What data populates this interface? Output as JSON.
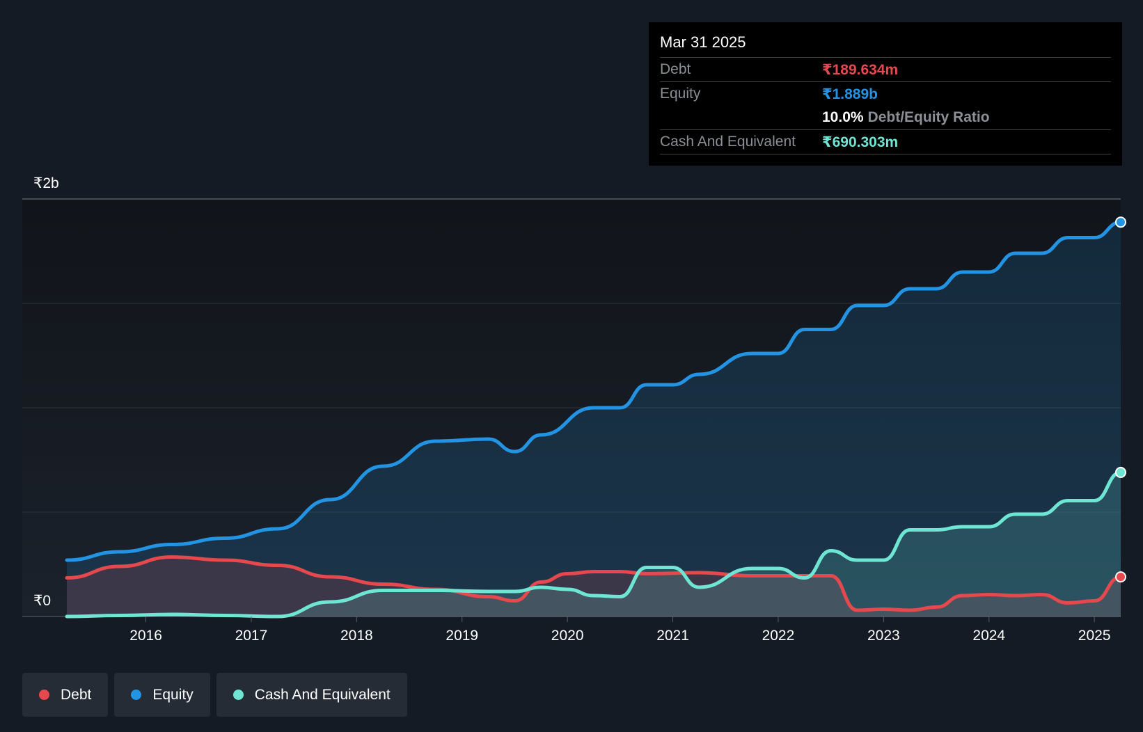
{
  "chart_data": {
    "type": "area",
    "currency": "₹",
    "y_axis": {
      "top_label": "₹2b",
      "bottom_label": "₹0",
      "ylim_millions": [
        0,
        2000
      ]
    },
    "x_axis": {
      "ticks": [
        "2016",
        "2017",
        "2018",
        "2019",
        "2020",
        "2021",
        "2022",
        "2023",
        "2024",
        "2025"
      ],
      "xlim": [
        2015.25,
        2025.25
      ]
    },
    "series": [
      {
        "name": "Debt",
        "color": "#e5484d",
        "unit": "₹m",
        "points": [
          [
            2015.25,
            185
          ],
          [
            2015.75,
            240
          ],
          [
            2016.25,
            285
          ],
          [
            2016.75,
            270
          ],
          [
            2017.25,
            245
          ],
          [
            2017.75,
            190
          ],
          [
            2018.25,
            155
          ],
          [
            2018.75,
            130
          ],
          [
            2019.25,
            95
          ],
          [
            2019.5,
            75
          ],
          [
            2019.75,
            165
          ],
          [
            2020.0,
            205
          ],
          [
            2020.25,
            215
          ],
          [
            2020.5,
            215
          ],
          [
            2020.75,
            205
          ],
          [
            2021.25,
            210
          ],
          [
            2021.75,
            195
          ],
          [
            2022.25,
            195
          ],
          [
            2022.5,
            195
          ],
          [
            2022.75,
            30
          ],
          [
            2023.0,
            35
          ],
          [
            2023.25,
            30
          ],
          [
            2023.5,
            45
          ],
          [
            2023.75,
            100
          ],
          [
            2024.0,
            105
          ],
          [
            2024.25,
            100
          ],
          [
            2024.5,
            105
          ],
          [
            2024.75,
            65
          ],
          [
            2025.0,
            75
          ],
          [
            2025.25,
            189.634
          ]
        ]
      },
      {
        "name": "Equity",
        "color": "#2394e3",
        "unit": "₹m",
        "points": [
          [
            2015.25,
            270
          ],
          [
            2015.75,
            310
          ],
          [
            2016.25,
            345
          ],
          [
            2016.75,
            375
          ],
          [
            2017.25,
            420
          ],
          [
            2017.75,
            560
          ],
          [
            2018.25,
            720
          ],
          [
            2018.75,
            840
          ],
          [
            2019.25,
            850
          ],
          [
            2019.5,
            790
          ],
          [
            2019.75,
            870
          ],
          [
            2020.25,
            1000
          ],
          [
            2020.5,
            1000
          ],
          [
            2020.75,
            1110
          ],
          [
            2021.0,
            1110
          ],
          [
            2021.25,
            1160
          ],
          [
            2021.75,
            1260
          ],
          [
            2022.0,
            1260
          ],
          [
            2022.25,
            1375
          ],
          [
            2022.5,
            1375
          ],
          [
            2022.75,
            1490
          ],
          [
            2023.0,
            1490
          ],
          [
            2023.25,
            1570
          ],
          [
            2023.5,
            1570
          ],
          [
            2023.75,
            1650
          ],
          [
            2024.0,
            1650
          ],
          [
            2024.25,
            1740
          ],
          [
            2024.5,
            1740
          ],
          [
            2024.75,
            1815
          ],
          [
            2025.0,
            1815
          ],
          [
            2025.25,
            1889
          ]
        ]
      },
      {
        "name": "Cash And Equivalent",
        "color": "#6ee6d3",
        "unit": "₹m",
        "points": [
          [
            2015.25,
            0
          ],
          [
            2015.75,
            5
          ],
          [
            2016.25,
            10
          ],
          [
            2016.75,
            5
          ],
          [
            2017.25,
            0
          ],
          [
            2017.75,
            70
          ],
          [
            2018.25,
            125
          ],
          [
            2018.75,
            125
          ],
          [
            2019.25,
            120
          ],
          [
            2019.5,
            120
          ],
          [
            2019.75,
            140
          ],
          [
            2020.0,
            130
          ],
          [
            2020.25,
            100
          ],
          [
            2020.5,
            95
          ],
          [
            2020.75,
            235
          ],
          [
            2021.0,
            235
          ],
          [
            2021.25,
            140
          ],
          [
            2021.75,
            230
          ],
          [
            2022.0,
            230
          ],
          [
            2022.25,
            185
          ],
          [
            2022.5,
            315
          ],
          [
            2022.75,
            270
          ],
          [
            2023.0,
            270
          ],
          [
            2023.25,
            415
          ],
          [
            2023.5,
            415
          ],
          [
            2023.75,
            430
          ],
          [
            2024.0,
            430
          ],
          [
            2024.25,
            490
          ],
          [
            2024.5,
            490
          ],
          [
            2024.75,
            555
          ],
          [
            2025.0,
            555
          ],
          [
            2025.25,
            690.303
          ]
        ]
      }
    ],
    "tooltip": {
      "date": "Mar 31 2025",
      "rows": [
        {
          "label": "Debt",
          "value": "₹189.634m",
          "color": "#e5484d"
        },
        {
          "label": "Equity",
          "value": "₹1.889b",
          "color": "#2394e3"
        },
        {
          "label": "",
          "ratio_value": "10.0%",
          "ratio_label": "Debt/Equity Ratio"
        },
        {
          "label": "Cash And Equivalent",
          "value": "₹690.303m",
          "color": "#6ee6d3"
        }
      ]
    },
    "legend": [
      {
        "label": "Debt",
        "color": "#e5484d"
      },
      {
        "label": "Equity",
        "color": "#2394e3"
      },
      {
        "label": "Cash And Equivalent",
        "color": "#6ee6d3"
      }
    ]
  }
}
